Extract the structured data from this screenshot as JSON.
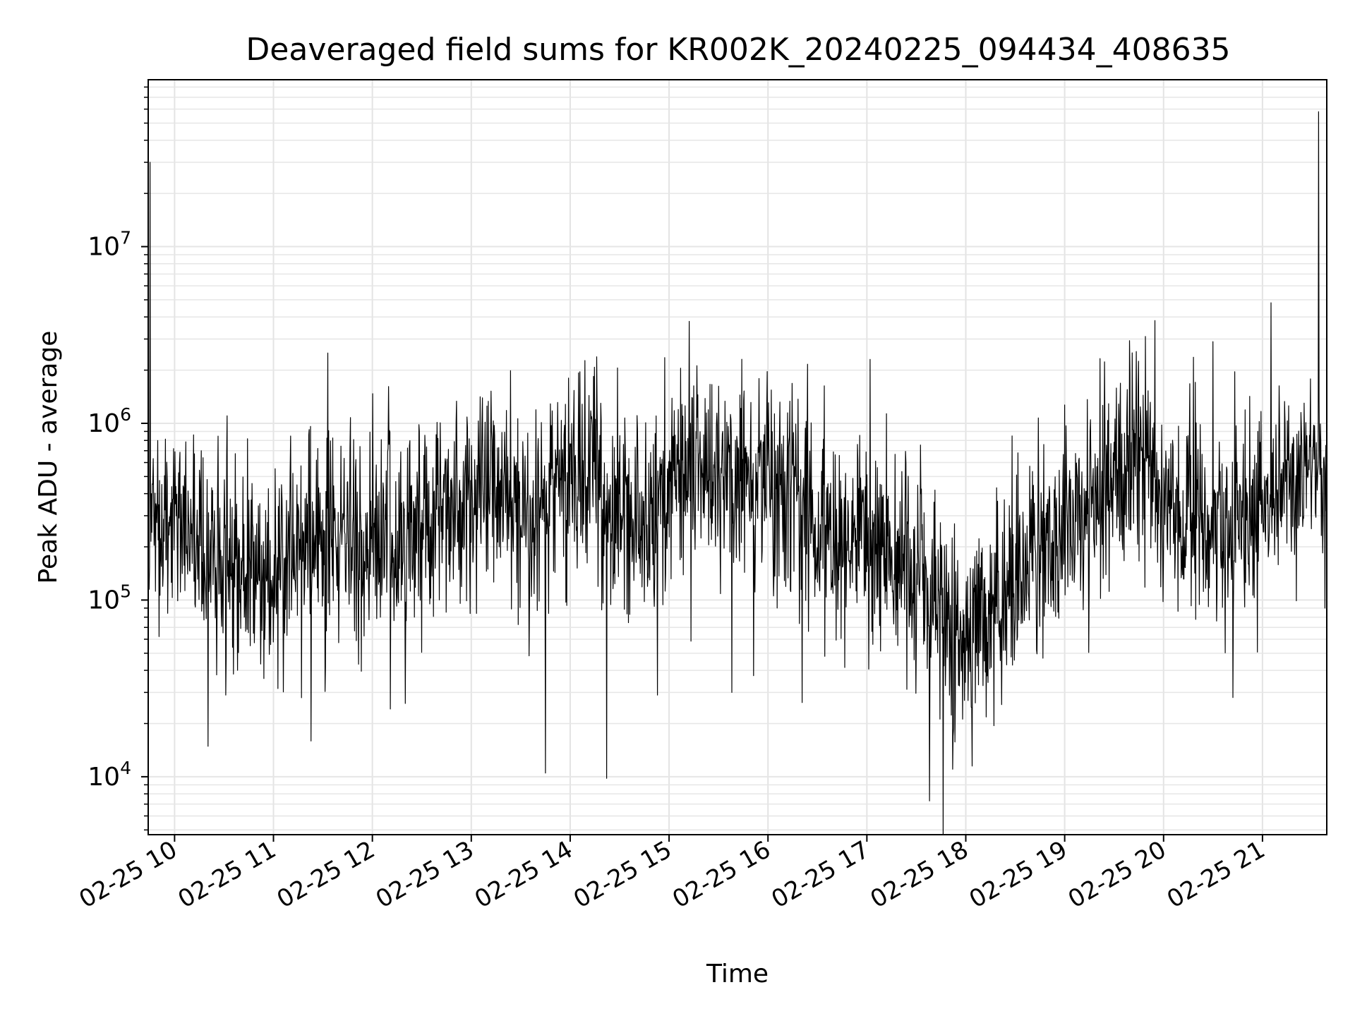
{
  "chart_data": {
    "type": "line",
    "title": "Deaveraged field sums for KR002K_20240225_094434_408635",
    "xlabel": "Time",
    "ylabel": "Peak ADU - average",
    "yscale": "log",
    "ylim": [
      4700,
      88000000
    ],
    "xlim": [
      "2024-02-25 09:44",
      "2024-02-25 21:39"
    ],
    "grid": true,
    "x_ticks": [
      {
        "t": "2024-02-25 10:00",
        "label": "02-25 10"
      },
      {
        "t": "2024-02-25 11:00",
        "label": "02-25 11"
      },
      {
        "t": "2024-02-25 12:00",
        "label": "02-25 12"
      },
      {
        "t": "2024-02-25 13:00",
        "label": "02-25 13"
      },
      {
        "t": "2024-02-25 14:00",
        "label": "02-25 14"
      },
      {
        "t": "2024-02-25 15:00",
        "label": "02-25 15"
      },
      {
        "t": "2024-02-25 16:00",
        "label": "02-25 16"
      },
      {
        "t": "2024-02-25 17:00",
        "label": "02-25 17"
      },
      {
        "t": "2024-02-25 18:00",
        "label": "02-25 18"
      },
      {
        "t": "2024-02-25 19:00",
        "label": "02-25 19"
      },
      {
        "t": "2024-02-25 20:00",
        "label": "02-25 20"
      },
      {
        "t": "2024-02-25 21:00",
        "label": "02-25 21"
      }
    ],
    "y_ticks": [
      {
        "value": 10000,
        "base": "10",
        "exp": "4"
      },
      {
        "value": 100000,
        "base": "10",
        "exp": "5"
      },
      {
        "value": 1000000,
        "base": "10",
        "exp": "6"
      },
      {
        "value": 10000000,
        "base": "10",
        "exp": "7"
      }
    ],
    "baseline_trend": [
      {
        "t": "2024-02-25 09:44",
        "value": 280000
      },
      {
        "t": "2024-02-25 10:00",
        "value": 300000
      },
      {
        "t": "2024-02-25 10:20",
        "value": 180000
      },
      {
        "t": "2024-02-25 10:45",
        "value": 170000
      },
      {
        "t": "2024-02-25 11:00",
        "value": 150000
      },
      {
        "t": "2024-02-25 11:30",
        "value": 230000
      },
      {
        "t": "2024-02-25 12:00",
        "value": 230000
      },
      {
        "t": "2024-02-25 12:30",
        "value": 270000
      },
      {
        "t": "2024-02-25 13:00",
        "value": 360000
      },
      {
        "t": "2024-02-25 13:30",
        "value": 360000
      },
      {
        "t": "2024-02-25 13:50",
        "value": 520000
      },
      {
        "t": "2024-02-25 14:10",
        "value": 560000
      },
      {
        "t": "2024-02-25 14:30",
        "value": 240000
      },
      {
        "t": "2024-02-25 14:50",
        "value": 280000
      },
      {
        "t": "2024-02-25 15:15",
        "value": 620000
      },
      {
        "t": "2024-02-25 15:45",
        "value": 420000
      },
      {
        "t": "2024-02-25 16:00",
        "value": 480000
      },
      {
        "t": "2024-02-25 16:30",
        "value": 230000
      },
      {
        "t": "2024-02-25 17:00",
        "value": 260000
      },
      {
        "t": "2024-02-25 17:30",
        "value": 130000
      },
      {
        "t": "2024-02-25 18:00",
        "value": 60000
      },
      {
        "t": "2024-02-25 18:30",
        "value": 130000
      },
      {
        "t": "2024-02-25 19:00",
        "value": 280000
      },
      {
        "t": "2024-02-25 19:30",
        "value": 520000
      },
      {
        "t": "2024-02-25 19:50",
        "value": 650000
      },
      {
        "t": "2024-02-25 20:00",
        "value": 330000
      },
      {
        "t": "2024-02-25 20:30",
        "value": 260000
      },
      {
        "t": "2024-02-25 21:00",
        "value": 320000
      },
      {
        "t": "2024-02-25 21:30",
        "value": 540000
      },
      {
        "t": "2024-02-25 21:39",
        "value": 600000
      }
    ],
    "notable_points": [
      {
        "t": "2024-02-25 09:45",
        "value": 30000000
      },
      {
        "t": "2024-02-25 10:31",
        "value": 29000
      },
      {
        "t": "2024-02-25 11:17",
        "value": 28000
      },
      {
        "t": "2024-02-25 11:33",
        "value": 2500000
      },
      {
        "t": "2024-02-25 12:20",
        "value": 26000
      },
      {
        "t": "2024-02-25 13:45",
        "value": 10500
      },
      {
        "t": "2024-02-25 14:22",
        "value": 9800
      },
      {
        "t": "2024-02-25 14:53",
        "value": 29000
      },
      {
        "t": "2024-02-25 15:07",
        "value": 2050000
      },
      {
        "t": "2024-02-25 15:38",
        "value": 30000
      },
      {
        "t": "2024-02-25 17:02",
        "value": 2300000
      },
      {
        "t": "2024-02-25 17:38",
        "value": 7300
      },
      {
        "t": "2024-02-25 18:04",
        "value": 11500
      },
      {
        "t": "2024-02-25 19:49",
        "value": 3100000
      },
      {
        "t": "2024-02-25 20:30",
        "value": 2900000
      },
      {
        "t": "2024-02-25 21:34",
        "value": 58000000
      },
      {
        "t": "2024-02-25 21:38",
        "value": 90000
      }
    ]
  }
}
